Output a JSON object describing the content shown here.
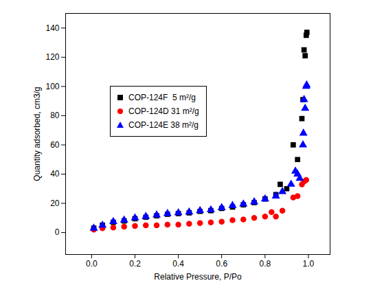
{
  "chart_data": {
    "type": "scatter",
    "x_label": "Relative Pressure, P/Po",
    "y_label": "Quantity adsorbed, cm3/g",
    "xlim": [
      -0.12,
      1.1
    ],
    "xticks": [
      {
        "value": 0,
        "label": "0.0"
      },
      0.2,
      0.4,
      0.6,
      0.8,
      {
        "value": 1,
        "label": "1.0"
      }
    ],
    "ylim": [
      -15,
      150
    ],
    "yticks": [
      0,
      20,
      40,
      60,
      80,
      100,
      120,
      140
    ],
    "grid": false,
    "legend": "upper left",
    "series": [
      {
        "name": "COP-124F  5 m²/g",
        "color": "#000000",
        "marker": "square",
        "x": [
          0.01,
          0.05,
          0.1,
          0.15,
          0.2,
          0.25,
          0.3,
          0.35,
          0.4,
          0.45,
          0.5,
          0.55,
          0.6,
          0.65,
          0.7,
          0.75,
          0.8,
          0.85,
          0.87,
          0.9,
          0.93,
          0.95,
          0.97,
          0.975,
          0.98,
          0.985,
          0.99,
          0.993
        ],
        "values": [
          3,
          5,
          7,
          8,
          9.5,
          10.5,
          11.5,
          12.5,
          13,
          13.5,
          14.5,
          15,
          16.5,
          17.5,
          19,
          20.5,
          23,
          26,
          33,
          30,
          60,
          50,
          78,
          91,
          125,
          121,
          135,
          137
        ]
      },
      {
        "name": "COP-124D 31 m²/g",
        "color": "#ff0000",
        "marker": "circle",
        "x": [
          0.01,
          0.05,
          0.1,
          0.15,
          0.2,
          0.25,
          0.3,
          0.35,
          0.4,
          0.45,
          0.5,
          0.55,
          0.6,
          0.65,
          0.7,
          0.75,
          0.8,
          0.83,
          0.85,
          0.88,
          0.93,
          0.95,
          0.97,
          0.98,
          0.99
        ],
        "values": [
          2,
          3,
          3.5,
          4,
          4.5,
          5,
          5,
          5.5,
          5.5,
          6,
          6.5,
          7,
          7.5,
          8.5,
          9,
          10,
          11,
          14,
          11,
          15,
          24,
          25,
          33,
          35,
          36
        ]
      },
      {
        "name": "COP-124E 38 m²/g",
        "color": "#0000ff",
        "marker": "triangle",
        "x": [
          0.01,
          0.05,
          0.1,
          0.15,
          0.2,
          0.25,
          0.3,
          0.35,
          0.4,
          0.45,
          0.5,
          0.55,
          0.6,
          0.65,
          0.7,
          0.75,
          0.8,
          0.85,
          0.88,
          0.92,
          0.94,
          0.95,
          0.96,
          0.975,
          0.977,
          0.98,
          0.985,
          0.99,
          0.992
        ],
        "values": [
          3,
          5,
          7.5,
          8.5,
          10,
          11,
          12,
          13,
          13.5,
          14,
          15,
          15.5,
          17,
          18.5,
          19.5,
          21,
          23,
          25,
          28,
          33,
          42,
          40,
          37,
          60,
          68,
          91,
          85,
          100,
          101
        ]
      }
    ]
  }
}
